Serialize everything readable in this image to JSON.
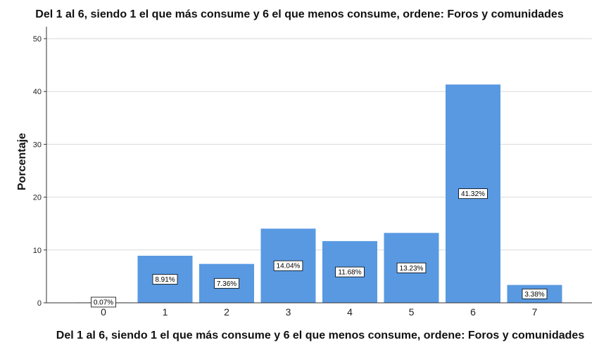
{
  "chart_data": {
    "type": "bar",
    "title": "Del 1 al 6, siendo 1 el que más consume y 6 el que menos consume, ordene: Foros y comunidades",
    "xlabel": "Del 1 al 6, siendo 1 el que más consume y 6 el que menos consume, ordene: Foros y comunidades",
    "ylabel": "Porcentaje",
    "categories": [
      "0",
      "1",
      "2",
      "3",
      "4",
      "5",
      "6",
      "7"
    ],
    "values": [
      0.07,
      8.91,
      7.36,
      14.04,
      11.68,
      13.23,
      41.32,
      3.38
    ],
    "data_labels": [
      "0.07%",
      "8.91%",
      "7.36%",
      "14.04%",
      "11.68%",
      "13.23%",
      "41.32%",
      "3.38%"
    ],
    "yticks": [
      0,
      10,
      20,
      30,
      40,
      50
    ],
    "ylim": [
      0,
      50
    ],
    "grid": true,
    "bar_color": "#5899e2",
    "grid_color": "#d9d9d9"
  }
}
